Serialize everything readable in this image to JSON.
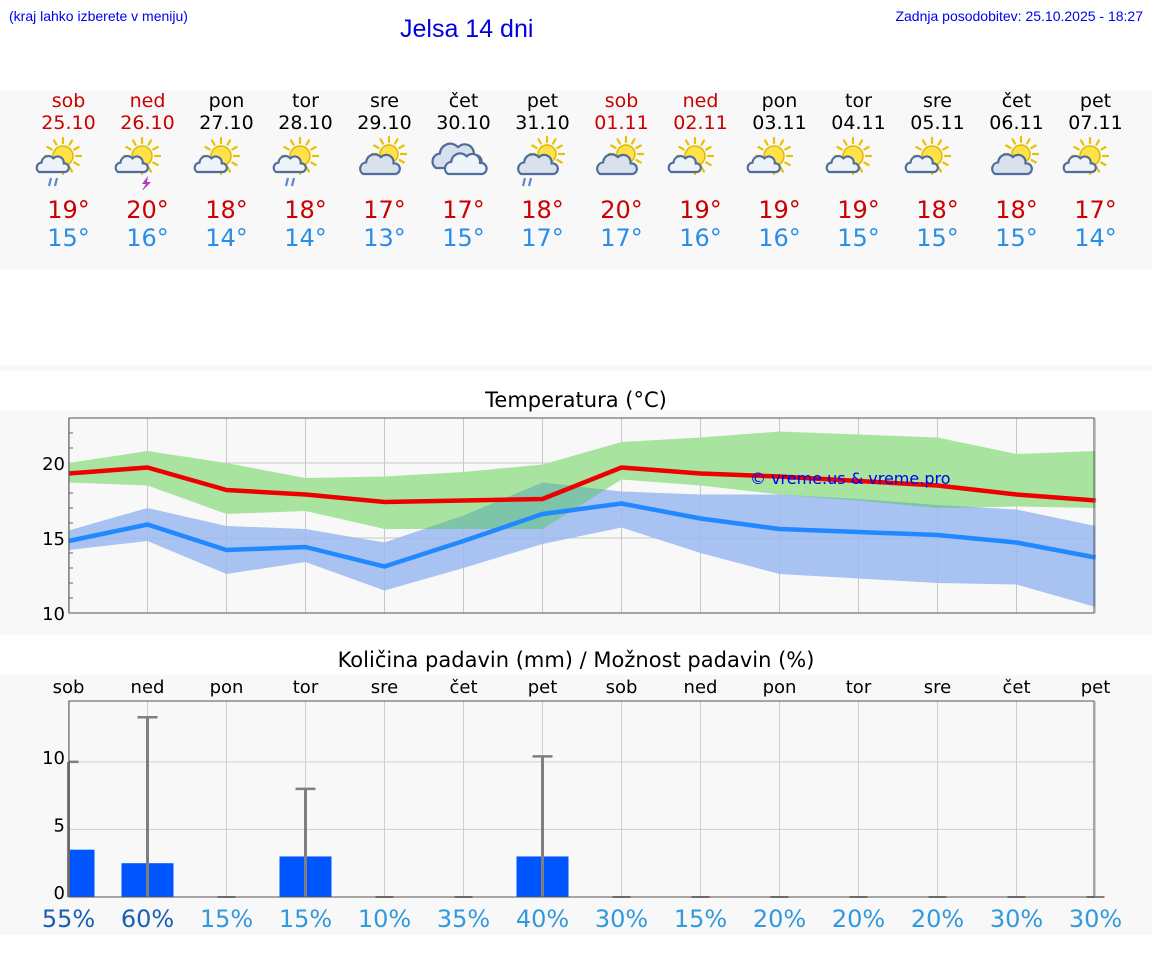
{
  "header": {
    "hint": "(kraj lahko izberete v meniju)",
    "title": "Jelsa 14 dni",
    "updated": "Zadnja posodobitev: 25.10.2025 - 18:27"
  },
  "days": [
    {
      "name": "sob",
      "date": "25.10",
      "weekend": true,
      "icon": "partly-sunny-rain-icon",
      "max": "19°",
      "min": "15°"
    },
    {
      "name": "ned",
      "date": "26.10",
      "weekend": true,
      "icon": "partly-sunny-thunder-icon",
      "max": "20°",
      "min": "16°"
    },
    {
      "name": "pon",
      "date": "27.10",
      "weekend": false,
      "icon": "partly-sunny-icon",
      "max": "18°",
      "min": "14°"
    },
    {
      "name": "tor",
      "date": "28.10",
      "weekend": false,
      "icon": "partly-sunny-rain-icon",
      "max": "18°",
      "min": "14°"
    },
    {
      "name": "sre",
      "date": "29.10",
      "weekend": false,
      "icon": "partly-cloudy-icon",
      "max": "17°",
      "min": "13°"
    },
    {
      "name": "čet",
      "date": "30.10",
      "weekend": false,
      "icon": "cloudy-icon",
      "max": "17°",
      "min": "15°"
    },
    {
      "name": "pet",
      "date": "31.10",
      "weekend": false,
      "icon": "partly-cloudy-rain-icon",
      "max": "18°",
      "min": "17°"
    },
    {
      "name": "sob",
      "date": "01.11",
      "weekend": true,
      "icon": "partly-cloudy-icon",
      "max": "20°",
      "min": "17°"
    },
    {
      "name": "ned",
      "date": "02.11",
      "weekend": true,
      "icon": "partly-sunny-icon",
      "max": "19°",
      "min": "16°"
    },
    {
      "name": "pon",
      "date": "03.11",
      "weekend": false,
      "icon": "partly-sunny-icon",
      "max": "19°",
      "min": "16°"
    },
    {
      "name": "tor",
      "date": "04.11",
      "weekend": false,
      "icon": "partly-sunny-icon",
      "max": "19°",
      "min": "15°"
    },
    {
      "name": "sre",
      "date": "05.11",
      "weekend": false,
      "icon": "partly-sunny-icon",
      "max": "18°",
      "min": "15°"
    },
    {
      "name": "čet",
      "date": "06.11",
      "weekend": false,
      "icon": "partly-cloudy-icon",
      "max": "18°",
      "min": "15°"
    },
    {
      "name": "pet",
      "date": "07.11",
      "weekend": false,
      "icon": "partly-sunny-icon",
      "max": "17°",
      "min": "14°"
    }
  ],
  "colors": {
    "max_line": "#ee0000",
    "min_line": "#2288ff",
    "max_band": "#a8e4a0",
    "min_band": "#9ab8f0",
    "overlap_band": "#7ec4a8",
    "precip_bar": "#0055ff",
    "error_bar": "#7f7f7f",
    "prob_dark": "#1a5fb4",
    "prob_light": "#3399dd"
  },
  "chart_data": [
    {
      "type": "line",
      "title": "Temperatura (°C)",
      "watermark": "© vreme.us & vreme.pro",
      "xlabel": "",
      "ylabel": "",
      "ylim": [
        10,
        23
      ],
      "yticks": [
        10,
        15,
        20
      ],
      "grid": true,
      "categories": [
        "25.10",
        "26.10",
        "27.10",
        "28.10",
        "29.10",
        "30.10",
        "31.10",
        "01.11",
        "02.11",
        "03.11",
        "04.11",
        "05.11",
        "06.11",
        "07.11"
      ],
      "series": [
        {
          "key": "max",
          "values": [
            19.3,
            19.7,
            18.2,
            17.9,
            17.4,
            17.5,
            17.6,
            19.7,
            19.3,
            19.1,
            18.8,
            18.5,
            17.9,
            17.5
          ]
        },
        {
          "key": "min",
          "values": [
            14.8,
            15.9,
            14.2,
            14.4,
            13.1,
            14.8,
            16.6,
            17.3,
            16.3,
            15.6,
            15.4,
            15.2,
            14.7,
            13.7
          ]
        }
      ],
      "bands": [
        {
          "key": "max_range",
          "low": [
            18.7,
            18.5,
            16.6,
            16.8,
            15.6,
            15.6,
            15.6,
            18.9,
            18.5,
            17.9,
            17.5,
            17.0,
            17.1,
            17.0
          ],
          "high": [
            20.0,
            20.8,
            20.0,
            19.0,
            19.1,
            19.4,
            19.9,
            21.4,
            21.7,
            22.1,
            21.9,
            21.7,
            20.6,
            20.8
          ]
        },
        {
          "key": "min_range",
          "low": [
            14.2,
            14.8,
            12.6,
            13.4,
            11.5,
            13.0,
            14.6,
            15.7,
            14.0,
            12.6,
            12.3,
            12.0,
            11.9,
            10.4
          ],
          "high": [
            15.5,
            17.0,
            15.8,
            15.6,
            14.7,
            16.5,
            18.7,
            18.1,
            17.9,
            17.9,
            17.6,
            17.2,
            16.9,
            15.8
          ]
        }
      ]
    },
    {
      "type": "bar",
      "title": "Količina padavin (mm) / Možnost padavin (%)",
      "xlabel": "",
      "ylabel": "",
      "ylim": [
        0,
        14.5
      ],
      "yticks": [
        0,
        5,
        10
      ],
      "grid": true,
      "categories": [
        "sob",
        "ned",
        "pon",
        "tor",
        "sre",
        "čet",
        "pet",
        "sob",
        "ned",
        "pon",
        "tor",
        "sre",
        "čet",
        "pet"
      ],
      "values": [
        3.5,
        2.5,
        0,
        3.0,
        0,
        0,
        3.0,
        0,
        0,
        0,
        0,
        0,
        0,
        0
      ],
      "error_high": [
        10.0,
        13.3,
        0,
        8.0,
        0,
        0,
        10.4,
        0,
        0,
        0,
        0,
        0,
        0,
        0
      ],
      "probabilities": [
        "55%",
        "60%",
        "15%",
        "15%",
        "10%",
        "35%",
        "40%",
        "30%",
        "15%",
        "20%",
        "20%",
        "20%",
        "30%",
        "30%"
      ],
      "probability_values": [
        55,
        60,
        15,
        15,
        10,
        35,
        40,
        30,
        15,
        20,
        20,
        20,
        30,
        30
      ]
    }
  ]
}
